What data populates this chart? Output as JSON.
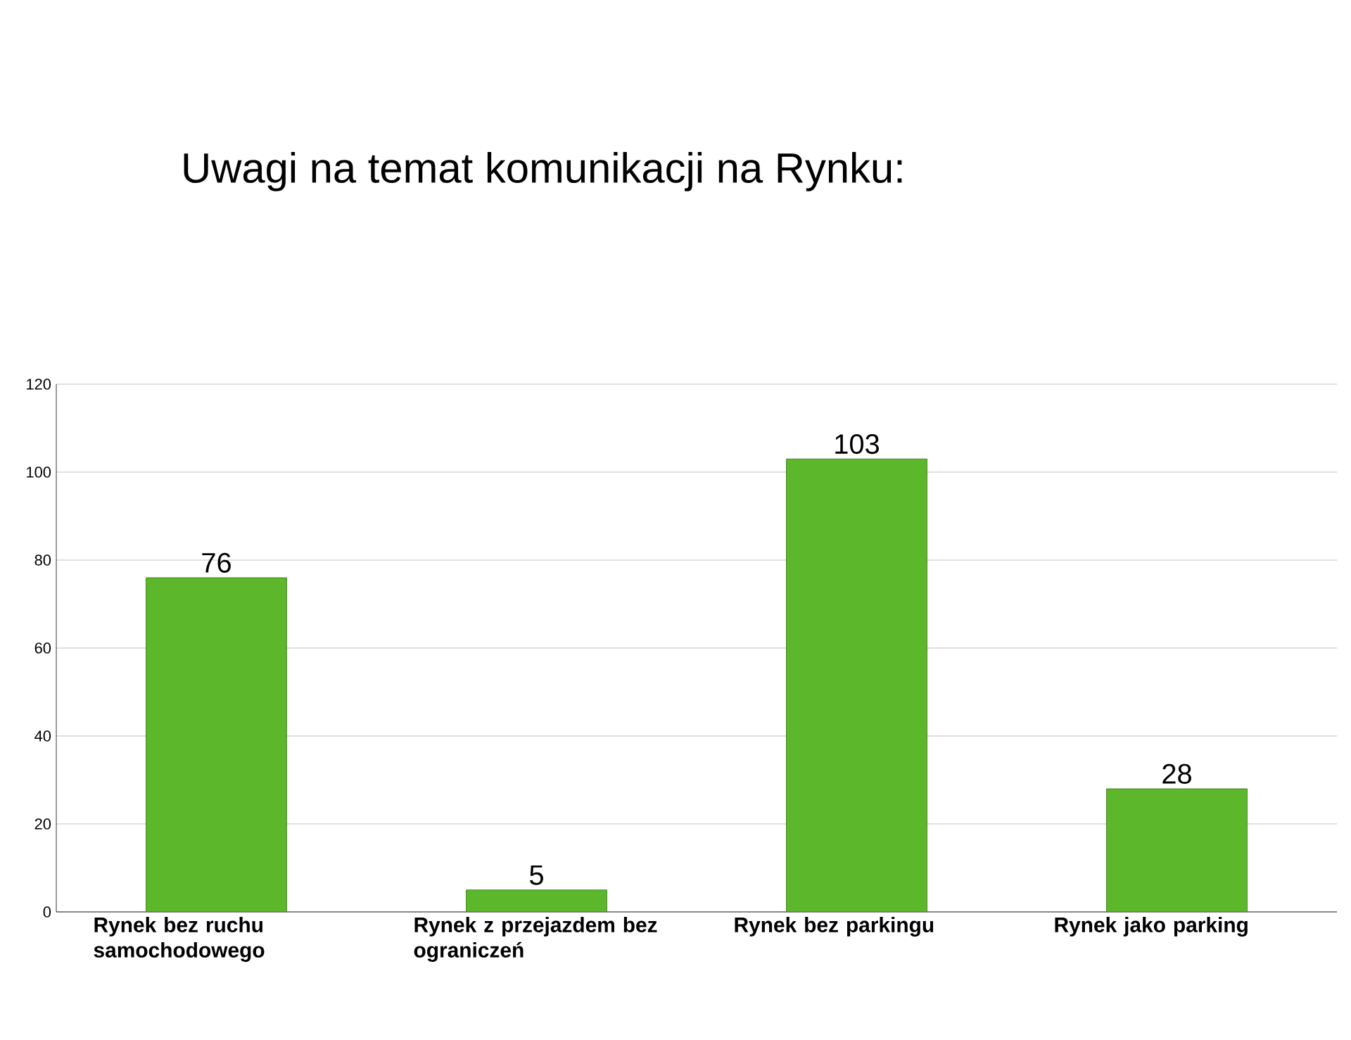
{
  "chart_data": {
    "type": "bar",
    "title": "Uwagi na temat komunikacji na Rynku:",
    "categories": [
      "Rynek bez ruchu samochodowego",
      "Rynek z przejazdem bez ograniczeń",
      "Rynek bez parkingu",
      "Rynek jako parking"
    ],
    "values": [
      76,
      5,
      103,
      28
    ],
    "color": "#5cb82a",
    "ylim": [
      0,
      120
    ],
    "yticks": [
      0,
      20,
      40,
      60,
      80,
      100,
      120
    ],
    "grid": "y",
    "data_labels": true
  }
}
